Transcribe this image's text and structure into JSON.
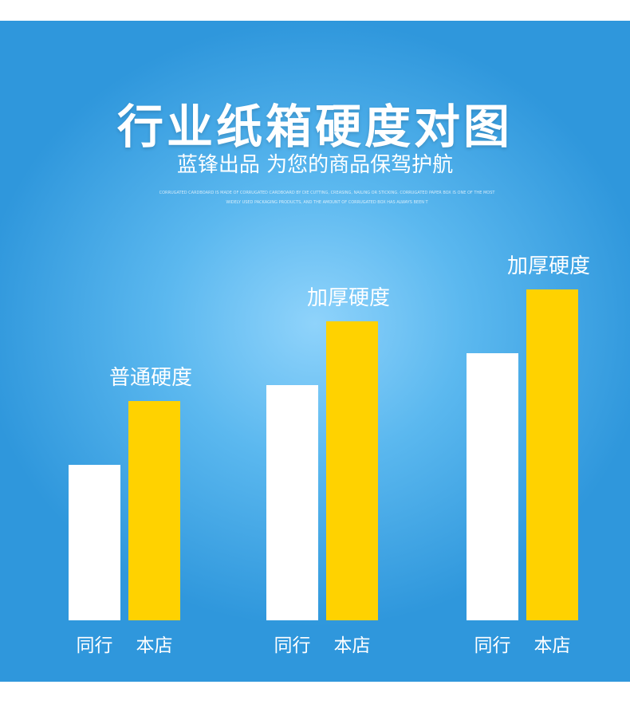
{
  "header": {
    "title": "行业纸箱硬度对图",
    "subtitle": "蓝锋出品 为您的商品保驾护航",
    "fine_print_1": "CORRUGATED CARDBOARD IS MADE OF CORRUGATED CARDBOARD BY DIE CUTTING, CREASING, NAILING OR STICKING. CORRUGATED PAPER BOX IS ONE OF THE MOST",
    "fine_print_2": "WIDELY USED PACKAGING PRODUCTS, AND THE AMOUNT OF CORRUGATED BOX HAS ALWAYS BEEN T"
  },
  "colors": {
    "bar_peer": "#ffffff",
    "bar_store": "#ffd200",
    "background": "#3fa5e6",
    "text": "#ffffff"
  },
  "chart_data": {
    "type": "bar",
    "title": "行业纸箱硬度对图",
    "group_labels": [
      "普通硬度",
      "加厚硬度",
      "加厚硬度"
    ],
    "groups": [
      {
        "label": "普通硬度",
        "bars": [
          {
            "label": "同行",
            "value": 195
          },
          {
            "label": "本店",
            "value": 275
          }
        ]
      },
      {
        "label": "加厚硬度",
        "bars": [
          {
            "label": "同行",
            "value": 295
          },
          {
            "label": "本店",
            "value": 375
          }
        ]
      },
      {
        "label": "加厚硬度",
        "bars": [
          {
            "label": "同行",
            "value": 335
          },
          {
            "label": "本店",
            "value": 415
          }
        ]
      }
    ],
    "ylim": [
      0,
      500
    ],
    "grid": false,
    "legend": "none",
    "ylabel": "",
    "xlabel": ""
  }
}
